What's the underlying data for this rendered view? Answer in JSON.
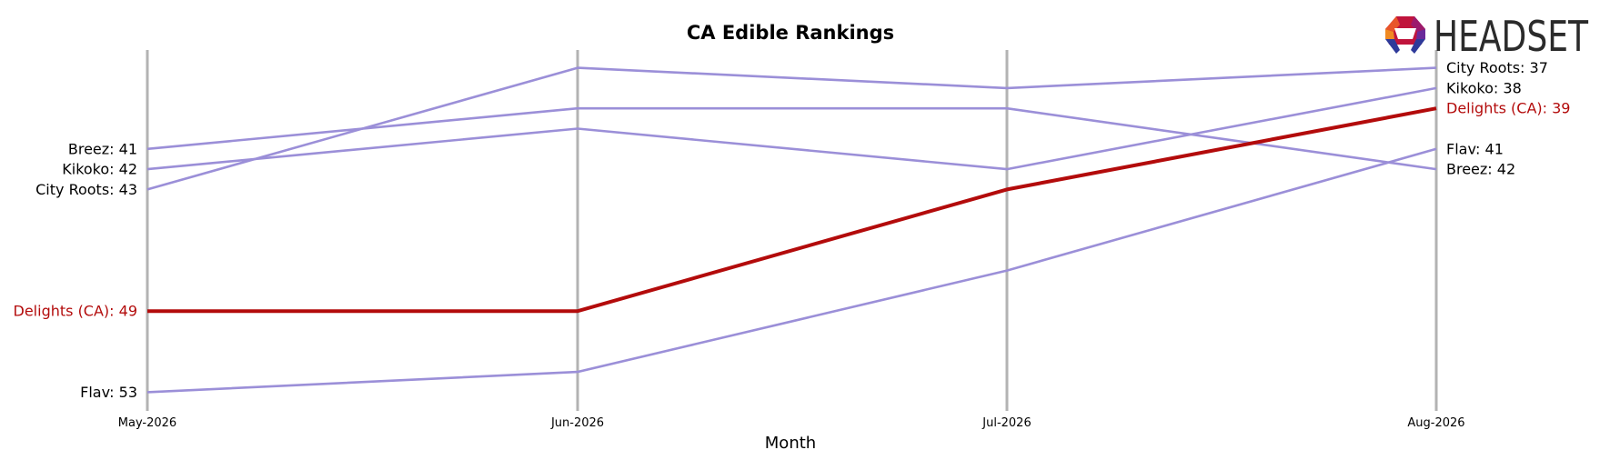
{
  "chart_data": {
    "type": "line",
    "title": "CA Edible Rankings",
    "xlabel": "Month",
    "ylabel": "",
    "categories": [
      "May-2026",
      "Jun-2026",
      "Jul-2026",
      "Aug-2026"
    ],
    "y_inverted": true,
    "ylim": [
      35,
      55
    ],
    "grid": "vertical lines at each month",
    "legend": "none",
    "highlight": "Delights (CA)",
    "colors": {
      "highlight": "#b30b0b",
      "other": "#9b8fd8",
      "vline": "#b3b3b3"
    },
    "series": [
      {
        "name": "Breez",
        "values": [
          41,
          39,
          39,
          42
        ]
      },
      {
        "name": "Kikoko",
        "values": [
          42,
          40,
          42,
          38
        ]
      },
      {
        "name": "City Roots",
        "values": [
          43,
          37,
          38,
          37
        ]
      },
      {
        "name": "Flav",
        "values": [
          53,
          52,
          47,
          41
        ]
      },
      {
        "name": "Delights (CA)",
        "values": [
          49,
          49,
          43,
          39
        ]
      }
    ],
    "left_labels": [
      "Breez: 41",
      "Kikoko: 42",
      "City Roots: 43",
      "Delights (CA): 49",
      "Flav: 53"
    ],
    "right_labels": [
      "City Roots: 37",
      "Kikoko: 38",
      "Delights (CA): 39",
      "Flav: 41",
      "Breez: 42"
    ]
  },
  "logo": {
    "text": "HEADSET",
    "icon": "headset-logo-icon"
  }
}
